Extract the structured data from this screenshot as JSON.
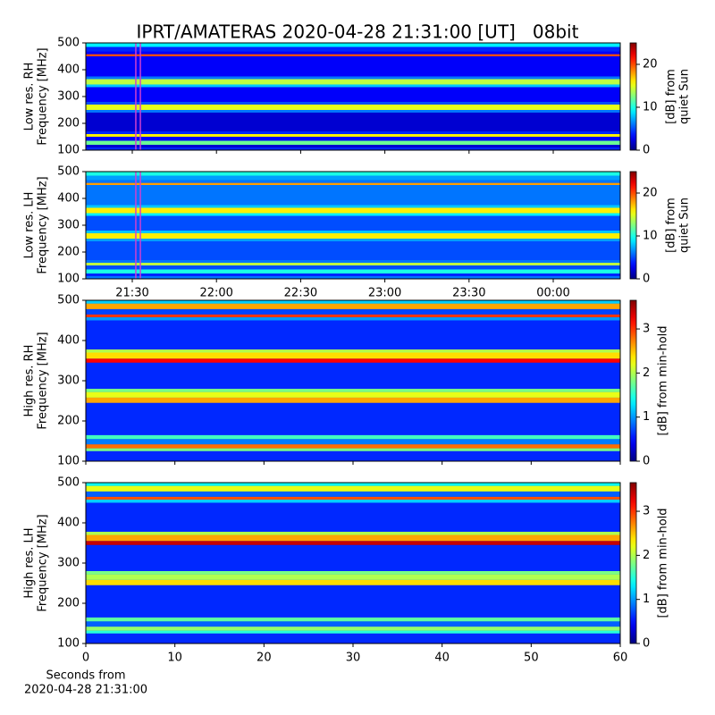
{
  "title": "IPRT/AMATERAS 2020-04-28 21:31:00 [UT]   08bit",
  "chart_data": [
    {
      "type": "heatmap",
      "ylabel": [
        "Low res. RH",
        "Frequency [MHz]"
      ],
      "clabel": [
        "[dB] from",
        "quiet Sun"
      ],
      "xlim": [
        21.224,
        24.398
      ],
      "xticks": [
        21.5,
        22,
        22.5,
        23,
        23.5,
        24
      ],
      "ylim": [
        100,
        500
      ],
      "yticks": [
        100,
        200,
        300,
        400,
        500
      ],
      "clim": [
        0,
        25
      ],
      "cticks": [
        0,
        10,
        20
      ],
      "colormap": "jet",
      "markers": [
        21.521,
        21.548
      ],
      "marker_color": "#d040d0",
      "y_bins": [
        100,
        110,
        120,
        135,
        150,
        160,
        170,
        240,
        250,
        270,
        280,
        335,
        345,
        365,
        375,
        450,
        458,
        468,
        485,
        500
      ],
      "values": [
        4,
        2,
        12,
        3,
        16,
        4,
        2,
        6,
        15,
        5,
        3,
        8,
        14,
        6,
        3,
        20,
        3,
        4,
        9
      ]
    },
    {
      "type": "heatmap",
      "ylabel": [
        "Low res. LH",
        "Frequency [MHz]"
      ],
      "clabel": [
        "[dB] from",
        "quiet Sun"
      ],
      "xlim": [
        21.224,
        24.398
      ],
      "xticks": [
        {
          "value": 21.5,
          "label": "21:30"
        },
        {
          "value": 22,
          "label": "22:00"
        },
        {
          "value": 22.5,
          "label": "22:30"
        },
        {
          "value": 23,
          "label": "23:00"
        },
        {
          "value": 23.5,
          "label": "23:30"
        },
        {
          "value": 24,
          "label": "00:00"
        }
      ],
      "ylim": [
        100,
        500
      ],
      "yticks": [
        100,
        200,
        300,
        400,
        500
      ],
      "clim": [
        0,
        25
      ],
      "cticks": [
        0,
        10,
        20
      ],
      "colormap": "jet",
      "markers": [
        21.521,
        21.548
      ],
      "marker_color": "#d040d0",
      "y_bins": [
        100,
        110,
        120,
        135,
        150,
        160,
        170,
        240,
        250,
        270,
        280,
        335,
        345,
        365,
        375,
        450,
        458,
        468,
        485,
        500
      ],
      "values": [
        6,
        4,
        10,
        5,
        14,
        6,
        5,
        7,
        16,
        8,
        5,
        9,
        16,
        8,
        6,
        18,
        6,
        7,
        10
      ]
    },
    {
      "type": "heatmap",
      "ylabel": [
        "High res. RH",
        "Frequency [MHz]"
      ],
      "clabel": [
        "[dB] from min-hold"
      ],
      "xlim": [
        0,
        60
      ],
      "xticks": [
        0,
        10,
        20,
        30,
        40,
        50,
        60
      ],
      "ylim": [
        100,
        500
      ],
      "yticks": [
        100,
        200,
        300,
        400,
        500
      ],
      "clim": [
        0,
        3.65
      ],
      "cticks": [
        0,
        1,
        2,
        3
      ],
      "colormap": "jet",
      "y_bins": [
        100,
        125,
        132,
        142,
        155,
        165,
        245,
        258,
        272,
        280,
        345,
        355,
        370,
        378,
        450,
        458,
        465,
        478,
        492,
        500
      ],
      "values": [
        0.6,
        1.8,
        2.8,
        0.9,
        1.6,
        0.6,
        2.6,
        2.2,
        1.8,
        0.6,
        3.2,
        2.4,
        2.0,
        0.6,
        1.0,
        3.0,
        0.7,
        2.6,
        1.2
      ]
    },
    {
      "type": "heatmap",
      "ylabel": [
        "High res. LH",
        "Frequency [MHz]"
      ],
      "clabel": [
        "[dB] from min-hold"
      ],
      "xlim": [
        0,
        60
      ],
      "xticks": [
        0,
        10,
        20,
        30,
        40,
        50,
        60
      ],
      "xlabel": [
        "Seconds from",
        "2020-04-28 21:31:00"
      ],
      "ylim": [
        100,
        500
      ],
      "yticks": [
        100,
        200,
        300,
        400,
        500
      ],
      "clim": [
        0,
        3.65
      ],
      "cticks": [
        0,
        1,
        2,
        3
      ],
      "colormap": "jet",
      "y_bins": [
        100,
        125,
        132,
        142,
        155,
        165,
        245,
        258,
        272,
        280,
        345,
        355,
        370,
        378,
        450,
        458,
        465,
        478,
        492,
        500
      ],
      "values": [
        0.6,
        1.5,
        1.9,
        0.8,
        1.7,
        0.6,
        2.4,
        2.0,
        1.8,
        0.6,
        3.4,
        2.6,
        2.0,
        0.6,
        1.2,
        2.9,
        0.8,
        2.2,
        1.4
      ]
    }
  ]
}
